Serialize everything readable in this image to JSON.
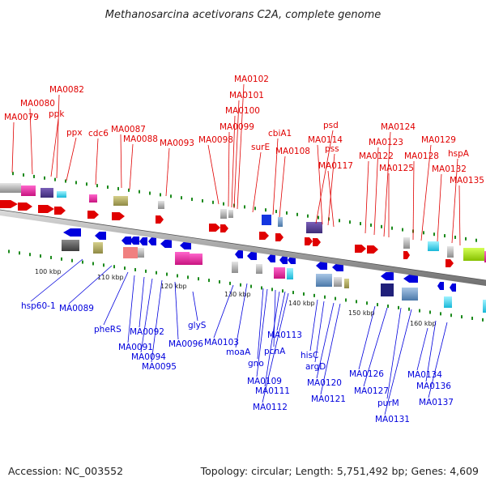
{
  "title": "Methanosarcina acetivorans C2A, complete genome",
  "footer": {
    "accession": "Accession: NC_003552",
    "summary": "Topology: circular; Length: 5,751,492 bp; Genes: 4,609"
  },
  "colors": {
    "forward": "#e00000",
    "reverse": "#0000dd",
    "backbone": "#8a8a8a",
    "tick": "#1c8a1c"
  },
  "scale_ticks": [
    "100 kbp",
    "110 kbp",
    "120 kbp",
    "130 kbp",
    "140 kbp",
    "150 kbp",
    "160 kbp"
  ],
  "forward_genes": [
    "MA0079",
    "MA0080",
    "MA0082",
    "ppk",
    "ppx",
    "cdc6",
    "MA0087",
    "MA0088",
    "MA0093",
    "MA0098",
    "MA0099",
    "MA0100",
    "MA0101",
    "MA0102",
    "surE",
    "cbiA1",
    "MA0108",
    "psd",
    "MA0114",
    "pss",
    "MA0117",
    "MA0122",
    "MA0123",
    "MA0124",
    "MA0125",
    "MA0128",
    "MA0129",
    "MA0132",
    "hspA",
    "MA0135"
  ],
  "reverse_genes": [
    "hsp60-1",
    "MA0089",
    "pheRS",
    "MA0092",
    "MA0091",
    "MA0094",
    "MA0096",
    "MA0095",
    "glyS",
    "MA0103",
    "moaA",
    "gno",
    "pcnA",
    "MA0113",
    "MA0109",
    "MA0111",
    "MA0112",
    "hisC",
    "argD",
    "MA0120",
    "MA0121",
    "MA0126",
    "MA0127",
    "purM",
    "MA0131",
    "MA0134",
    "MA0136",
    "MA0137"
  ]
}
